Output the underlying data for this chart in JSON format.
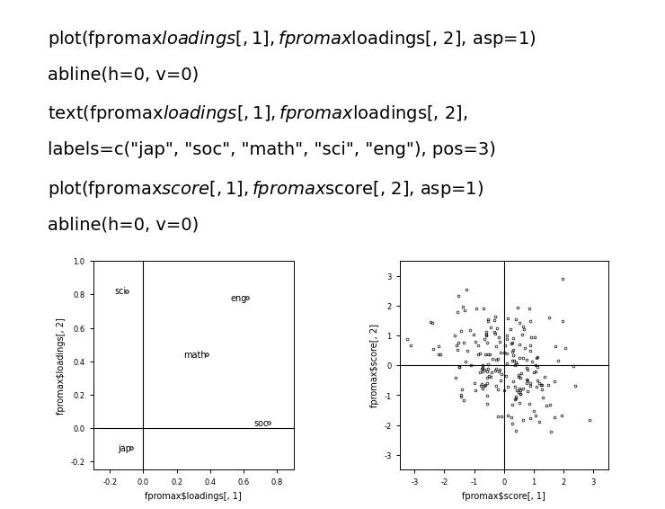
{
  "code_lines": [
    "plot(fpromax$loadings[, 1], fpromax$loadings[, 2], asp=1)",
    "abline(h=0, v=0)",
    "text(fpromax$loadings[, 1], fpromax$loadings[, 2],",
    "labels=c(\"jap\", \"soc\", \"math\", \"sci\", \"eng\"), pos=3)",
    "plot(fpromax$score[, 1], fpromax$score[, 2], asp=1)",
    "abline(h=0, v=0)"
  ],
  "loadings_x": [
    -0.07,
    0.75,
    0.38,
    -0.1,
    0.62
  ],
  "loadings_y": [
    -0.12,
    0.03,
    0.44,
    0.82,
    0.78
  ],
  "labels": [
    "jap",
    "soc",
    "math",
    "sci",
    "eng"
  ],
  "loadings_xlabel": "fpromax$loadings[, 1]",
  "loadings_ylabel": "fpromax$loadings[, 2]",
  "loadings_xlim": [
    -0.3,
    0.9
  ],
  "loadings_ylim": [
    -0.25,
    1.0
  ],
  "scores_xlabel": "fpromax$score[, 1]",
  "scores_ylabel": "fpromax$score[, 2]",
  "scores_xlim": [
    -3.5,
    3.5
  ],
  "scores_ylim": [
    -3.5,
    3.5
  ],
  "scores_n": 200,
  "scores_seed": 42,
  "bg_color": "#ffffff",
  "code_fontsize": 14,
  "axis_fontsize": 7,
  "label_fontsize": 7,
  "tick_fontsize": 6
}
